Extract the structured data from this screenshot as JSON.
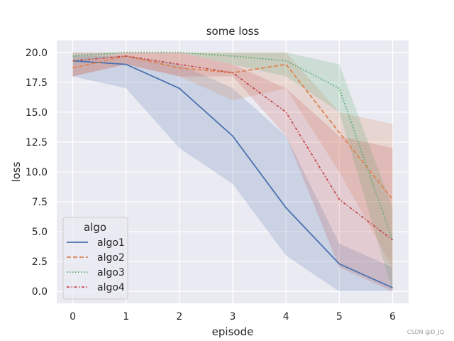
{
  "chart_data": {
    "type": "line",
    "title": "some loss",
    "xlabel": "episode",
    "ylabel": "loss",
    "xlim": [
      -0.3,
      6.3
    ],
    "ylim": [
      -1.0,
      21.0
    ],
    "x": [
      0,
      1,
      2,
      3,
      4,
      5,
      6
    ],
    "xticks": [
      0,
      1,
      2,
      3,
      4,
      5,
      6
    ],
    "yticks": [
      0.0,
      2.5,
      5.0,
      7.5,
      10.0,
      12.5,
      15.0,
      17.5,
      20.0
    ],
    "ytick_labels": [
      "0.0",
      "2.5",
      "5.0",
      "7.5",
      "10.0",
      "12.5",
      "15.0",
      "17.5",
      "20.0"
    ],
    "grid": true,
    "legend": {
      "title": "algo",
      "placement": "lower-left"
    },
    "series": [
      {
        "name": "algo1",
        "color": "#4c72b0",
        "dash": "solid",
        "values": [
          19.3,
          19.0,
          17.0,
          13.0,
          7.0,
          2.3,
          0.3
        ],
        "lower": [
          18.0,
          17.0,
          12.0,
          9.0,
          3.0,
          0.0,
          0.0
        ],
        "upper": [
          19.7,
          19.7,
          19.0,
          17.0,
          13.0,
          4.0,
          2.0
        ]
      },
      {
        "name": "algo2",
        "color": "#dd8452",
        "dash": "dashed",
        "values": [
          18.7,
          19.7,
          18.7,
          18.3,
          19.0,
          13.3,
          7.7
        ],
        "lower": [
          18.0,
          19.0,
          18.0,
          16.0,
          17.0,
          10.0,
          2.0
        ],
        "upper": [
          19.0,
          20.0,
          20.0,
          20.0,
          20.0,
          15.0,
          14.0
        ]
      },
      {
        "name": "algo3",
        "color": "#55a868",
        "dash": "dotted",
        "values": [
          19.7,
          20.0,
          20.0,
          19.7,
          19.3,
          17.0,
          4.3
        ],
        "lower": [
          19.0,
          20.0,
          20.0,
          19.0,
          18.0,
          15.0,
          0.0
        ],
        "upper": [
          20.0,
          20.0,
          20.0,
          20.0,
          20.0,
          19.0,
          7.0
        ]
      },
      {
        "name": "algo4",
        "color": "#c44e52",
        "dash": "dashdot",
        "values": [
          19.3,
          19.7,
          19.0,
          18.3,
          15.0,
          7.7,
          4.3
        ],
        "lower": [
          18.0,
          19.0,
          18.0,
          18.0,
          13.0,
          2.0,
          0.0
        ],
        "upper": [
          20.0,
          20.0,
          20.0,
          19.0,
          17.0,
          13.0,
          12.0
        ]
      }
    ]
  },
  "watermark": "CSDN @D_JQ"
}
